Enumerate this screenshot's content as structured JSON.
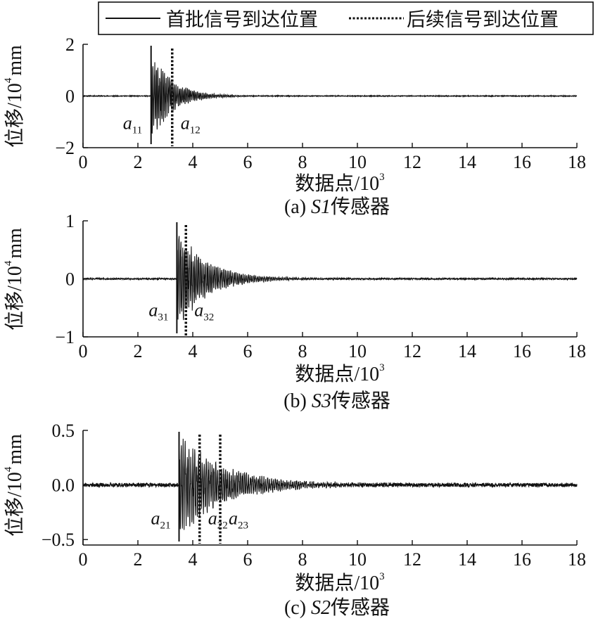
{
  "legend": {
    "first_label": "首批信号到达位置",
    "later_label": "后续信号到达位置"
  },
  "chart_data": [
    {
      "type": "line",
      "title": "",
      "caption": "(a) S1传感器",
      "caption_prefix": "(a) ",
      "caption_sensor": "S1",
      "caption_suffix": "传感器",
      "xlabel": "数据点/10",
      "xlabel_exp": "3",
      "ylabel": "位移/10",
      "ylabel_exp": "4",
      "ylabel_unit": "mm",
      "xlim": [
        0,
        18
      ],
      "ylim": [
        -2,
        2
      ],
      "xticks": [
        0,
        2,
        4,
        6,
        8,
        10,
        12,
        14,
        16,
        18
      ],
      "xtick_labels": [
        "0",
        "2",
        "4",
        "6",
        "8",
        "10",
        "12",
        "14",
        "16",
        "18"
      ],
      "yticks": [
        -2,
        0,
        2
      ],
      "ytick_labels": [
        "−2",
        "0",
        "2"
      ],
      "grid": false,
      "series": [
        {
          "signal": {
            "onset": 2.48,
            "amplitude": 1.85,
            "decay": 0.75,
            "noise": 0.015,
            "period": 0.06,
            "seed": 11
          }
        }
      ],
      "markers": [
        {
          "kind": "first",
          "x": 2.48,
          "label": "a",
          "sub": "11"
        },
        {
          "kind": "later",
          "x": 3.25,
          "label": "a",
          "sub": "12"
        }
      ]
    },
    {
      "type": "line",
      "title": "",
      "caption": "(b) S3传感器",
      "caption_prefix": "(b) ",
      "caption_sensor": "S3",
      "caption_suffix": "传感器",
      "xlabel": "数据点/10",
      "xlabel_exp": "3",
      "ylabel": "位移/10",
      "ylabel_exp": "4",
      "ylabel_unit": "mm",
      "xlim": [
        0,
        18
      ],
      "ylim": [
        -1,
        1
      ],
      "xticks": [
        0,
        2,
        4,
        6,
        8,
        10,
        12,
        14,
        16,
        18
      ],
      "xtick_labels": [
        "0",
        "2",
        "4",
        "6",
        "8",
        "10",
        "12",
        "14",
        "16",
        "18"
      ],
      "yticks": [
        -1,
        0,
        1
      ],
      "ytick_labels": [
        "−1",
        "0",
        "1"
      ],
      "grid": false,
      "series": [
        {
          "signal": {
            "onset": 3.42,
            "amplitude": 0.95,
            "decay": 1.05,
            "noise": 0.012,
            "period": 0.065,
            "seed": 31
          }
        }
      ],
      "markers": [
        {
          "kind": "first",
          "x": 3.42,
          "label": "a",
          "sub": "31"
        },
        {
          "kind": "later",
          "x": 3.75,
          "label": "a",
          "sub": "32"
        }
      ]
    },
    {
      "type": "line",
      "title": "",
      "caption": "(c) S2传感器",
      "caption_prefix": "(c) ",
      "caption_sensor": "S2",
      "caption_suffix": "传感器",
      "xlabel": "数据点/10",
      "xlabel_exp": "3",
      "ylabel": "位移/10",
      "ylabel_exp": "4",
      "ylabel_unit": "mm",
      "xlim": [
        0,
        18
      ],
      "ylim": [
        -0.55,
        0.5
      ],
      "xticks": [
        0,
        2,
        4,
        6,
        8,
        10,
        12,
        14,
        16,
        18
      ],
      "xtick_labels": [
        "0",
        "2",
        "4",
        "6",
        "8",
        "10",
        "12",
        "14",
        "16",
        "18"
      ],
      "yticks": [
        -0.5,
        0.0,
        0.5
      ],
      "ytick_labels": [
        "−0.5",
        "0.0",
        "0.5"
      ],
      "grid": false,
      "series": [
        {
          "signal": {
            "onset": 3.5,
            "amplitude": 0.5,
            "decay": 1.6,
            "noise": 0.018,
            "period": 0.07,
            "seed": 21
          }
        }
      ],
      "markers": [
        {
          "kind": "first",
          "x": 3.5,
          "label": "a",
          "sub": "21"
        },
        {
          "kind": "later",
          "x": 4.25,
          "label": "a",
          "sub": "22"
        },
        {
          "kind": "later",
          "x": 5.0,
          "label": "a",
          "sub": "23"
        }
      ]
    }
  ]
}
